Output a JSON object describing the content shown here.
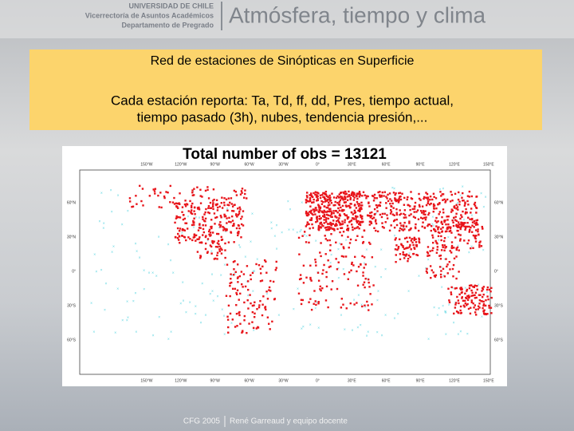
{
  "header": {
    "university": "UNIVERSIDAD DE CHILE",
    "office": "Vicerrectoría de Asuntos Académicos",
    "department": "Departamento de Pregrado",
    "title": "Atmósfera, tiempo y clima"
  },
  "box": {
    "title": "Red de estaciones de Sinópticas en Superficie",
    "line1": "Cada estación reporta: Ta, Td, ff, dd, Pres, tiempo actual,",
    "line2": "tiempo pasado (3h), nubes, tendencia presión,..."
  },
  "map": {
    "title": "Total number of obs = 13121",
    "lon_labels": [
      "150°W",
      "120°W",
      "90°W",
      "60°W",
      "30°W",
      "0°",
      "30°E",
      "60°E",
      "90°E",
      "120°E",
      "150°E"
    ],
    "lat_labels": [
      "60°N",
      "30°N",
      "0°",
      "30°S",
      "60°S"
    ]
  },
  "footer": {
    "course": "CFG 2005",
    "authors": "René Garreaud y equipo docente"
  }
}
